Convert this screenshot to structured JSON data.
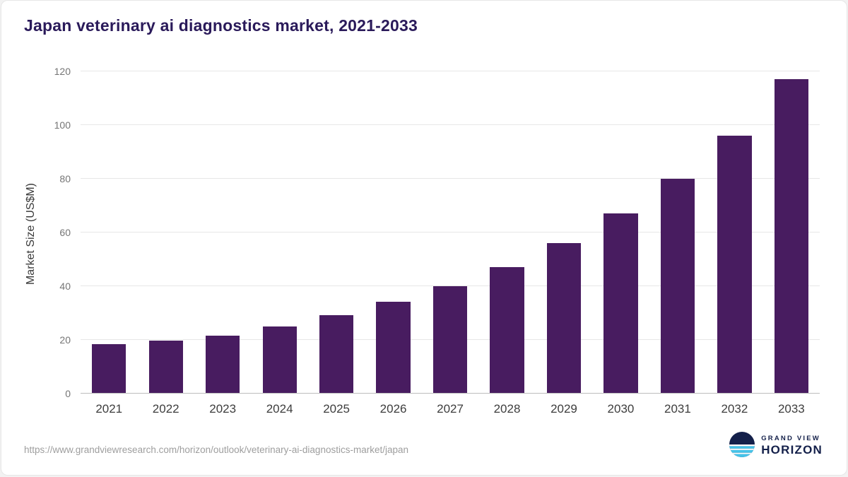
{
  "chart_data": {
    "type": "bar",
    "title": "Japan veterinary ai diagnostics market, 2021-2033",
    "categories": [
      "2021",
      "2022",
      "2023",
      "2024",
      "2025",
      "2026",
      "2027",
      "2028",
      "2029",
      "2030",
      "2031",
      "2032",
      "2033"
    ],
    "values": [
      18.5,
      19.8,
      21.7,
      25,
      29.3,
      34.2,
      40,
      47,
      56,
      67,
      80,
      96,
      117
    ],
    "xlabel": "",
    "ylabel": "Market Size (US$M)",
    "ylim": [
      0,
      120
    ],
    "yticks": [
      0,
      20,
      40,
      60,
      80,
      100,
      120
    ],
    "grid": true,
    "legend": null,
    "bar_color": "#481c60"
  },
  "footer": {
    "source_url": "https://www.grandviewresearch.com/horizon/outlook/veterinary-ai-diagnostics-market/japan",
    "brand_line1": "GRAND VIEW",
    "brand_line2": "HORIZON"
  },
  "colors": {
    "bar": "#481c60",
    "title": "#2a1a5a",
    "brand_navy": "#14204a",
    "brand_teal": "#44c3e9"
  }
}
